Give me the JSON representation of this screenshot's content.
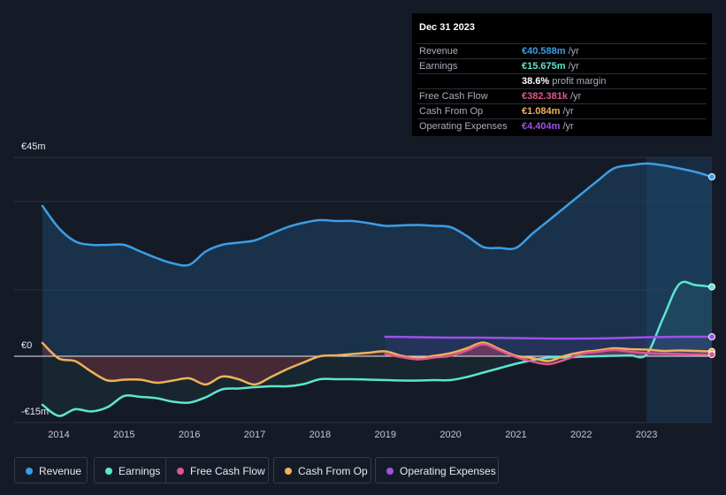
{
  "tooltip": {
    "date": "Dec 31 2023",
    "rows": [
      {
        "label": "Revenue",
        "value": "€40.588m",
        "suffix": "/yr",
        "color": "#3b9ee8"
      },
      {
        "label": "Earnings",
        "value": "€15.675m",
        "suffix": "/yr",
        "color": "#5ce6cf"
      },
      {
        "label": "",
        "value": "38.6%",
        "suffix": "profit margin",
        "color": "#ffffff"
      },
      {
        "label": "Free Cash Flow",
        "value": "€382.381k",
        "suffix": "/yr",
        "color": "#e0568f"
      },
      {
        "label": "Cash From Op",
        "value": "€1.084m",
        "suffix": "/yr",
        "color": "#f0b15a"
      },
      {
        "label": "Operating Expenses",
        "value": "€4.404m",
        "suffix": "/yr",
        "color": "#9b52e8"
      }
    ]
  },
  "legend": [
    {
      "label": "Revenue",
      "color": "#3b9ee8"
    },
    {
      "label": "Earnings",
      "color": "#5ce6cf"
    },
    {
      "label": "Free Cash Flow",
      "color": "#e0568f"
    },
    {
      "label": "Cash From Op",
      "color": "#f0b15a"
    },
    {
      "label": "Operating Expenses",
      "color": "#9b52e8"
    }
  ],
  "chart_data": {
    "type": "line",
    "title": "",
    "xlabel": "",
    "ylabel": "",
    "y_tick_labels": [
      "€45m",
      "€0",
      "-€15m"
    ],
    "x_tick_labels": [
      "2014",
      "2015",
      "2016",
      "2017",
      "2018",
      "2019",
      "2020",
      "2021",
      "2022",
      "2023"
    ],
    "xlim": [
      2013.75,
      2024.0
    ],
    "ylim": [
      -15,
      45
    ],
    "x_ticks": [
      2014,
      2015,
      2016,
      2017,
      2018,
      2019,
      2020,
      2021,
      2022,
      2023
    ],
    "highlight_range": [
      2023.0,
      2024.0
    ],
    "series": [
      {
        "name": "Revenue",
        "color": "#3b9ee8",
        "x": [
          2013.75,
          2014.0,
          2014.25,
          2014.5,
          2014.75,
          2015.0,
          2015.25,
          2015.5,
          2015.75,
          2016.0,
          2016.25,
          2016.5,
          2016.75,
          2017.0,
          2017.25,
          2017.5,
          2017.75,
          2018.0,
          2018.25,
          2018.5,
          2018.75,
          2019.0,
          2019.25,
          2019.5,
          2019.75,
          2020.0,
          2020.25,
          2020.5,
          2020.75,
          2021.0,
          2021.25,
          2021.5,
          2021.75,
          2022.0,
          2022.25,
          2022.5,
          2022.75,
          2023.0,
          2023.25,
          2023.5,
          2023.75,
          2024.0
        ],
        "values": [
          34,
          29,
          26,
          25.2,
          25.2,
          25.2,
          23.7,
          22.2,
          21,
          20.7,
          23.7,
          25.2,
          25.7,
          26.2,
          27.7,
          29.2,
          30.2,
          30.8,
          30.6,
          30.6,
          30.1,
          29.5,
          29.6,
          29.7,
          29.5,
          29.2,
          27.2,
          24.7,
          24.5,
          24.5,
          27.7,
          30.7,
          33.7,
          36.7,
          39.7,
          42.5,
          43.2,
          43.6,
          43.2,
          42.5,
          41.7,
          40.6
        ]
      },
      {
        "name": "Earnings",
        "color": "#5ce6cf",
        "x": [
          2013.75,
          2014.0,
          2014.25,
          2014.5,
          2014.75,
          2015.0,
          2015.25,
          2015.5,
          2015.75,
          2016.0,
          2016.25,
          2016.5,
          2016.75,
          2017.0,
          2017.25,
          2017.5,
          2017.75,
          2018.0,
          2018.25,
          2018.5,
          2018.75,
          2019.0,
          2019.25,
          2019.5,
          2019.75,
          2020.0,
          2020.25,
          2020.5,
          2020.75,
          2021.0,
          2021.25,
          2021.5,
          2021.75,
          2022.0,
          2022.25,
          2022.5,
          2022.75,
          2023.0,
          2023.25,
          2023.5,
          2023.75,
          2024.0
        ],
        "values": [
          -11,
          -13.5,
          -12,
          -12.5,
          -11.5,
          -9,
          -9.2,
          -9.5,
          -10.3,
          -10.5,
          -9.3,
          -7.5,
          -7.3,
          -7,
          -6.8,
          -6.8,
          -6.3,
          -5.2,
          -5.2,
          -5.2,
          -5.3,
          -5.4,
          -5.5,
          -5.5,
          -5.4,
          -5.4,
          -4.7,
          -3.7,
          -2.7,
          -1.7,
          -0.9,
          -0.3,
          -0.3,
          -0.1,
          0.0,
          0.1,
          0.2,
          0.4,
          8.5,
          16.3,
          16.1,
          15.7
        ]
      },
      {
        "name": "Free Cash Flow",
        "color": "#e0568f",
        "x": [
          2019.0,
          2019.25,
          2019.5,
          2019.75,
          2020.0,
          2020.25,
          2020.5,
          2020.75,
          2021.0,
          2021.25,
          2021.5,
          2021.75,
          2022.0,
          2022.25,
          2022.5,
          2022.75,
          2023.0,
          2023.25,
          2023.5,
          2023.75,
          2024.0
        ],
        "values": [
          0.5,
          -0.2,
          -0.7,
          -0.3,
          0.1,
          1.3,
          2.7,
          1.3,
          -0.2,
          -1.2,
          -1.8,
          -0.8,
          0.5,
          1.0,
          1.4,
          1.0,
          0.7,
          0.6,
          0.5,
          0.4,
          0.38
        ]
      },
      {
        "name": "Cash From Op",
        "color": "#f0b15a",
        "x": [
          2013.75,
          2014.0,
          2014.25,
          2014.5,
          2014.75,
          2015.0,
          2015.25,
          2015.5,
          2015.75,
          2016.0,
          2016.25,
          2016.5,
          2016.75,
          2017.0,
          2017.25,
          2017.5,
          2017.75,
          2018.0,
          2018.25,
          2018.5,
          2018.75,
          2019.0,
          2019.25,
          2019.5,
          2019.75,
          2020.0,
          2020.25,
          2020.5,
          2020.75,
          2021.0,
          2021.25,
          2021.5,
          2021.75,
          2022.0,
          2022.25,
          2022.5,
          2022.75,
          2023.0,
          2023.25,
          2023.5,
          2023.75,
          2024.0
        ],
        "values": [
          3,
          -0.5,
          -1.1,
          -3.5,
          -5.5,
          -5.3,
          -5.3,
          -6.0,
          -5.5,
          -5.0,
          -6.4,
          -4.6,
          -5.2,
          -6.4,
          -4.7,
          -2.9,
          -1.4,
          0.0,
          0.2,
          0.5,
          0.8,
          1.1,
          0.1,
          -0.4,
          0.1,
          0.7,
          1.8,
          3.1,
          1.6,
          0.1,
          -0.4,
          -1.1,
          0.1,
          0.9,
          1.3,
          1.8,
          1.6,
          1.5,
          1.2,
          1.3,
          1.2,
          1.08
        ]
      },
      {
        "name": "Operating Expenses",
        "color": "#9b52e8",
        "x": [
          2019.0,
          2019.5,
          2020.0,
          2020.5,
          2021.0,
          2021.5,
          2022.0,
          2022.5,
          2023.0,
          2023.5,
          2024.0
        ],
        "values": [
          4.4,
          4.3,
          4.2,
          4.2,
          4.1,
          4.0,
          4.0,
          4.1,
          4.3,
          4.4,
          4.4
        ]
      }
    ]
  }
}
